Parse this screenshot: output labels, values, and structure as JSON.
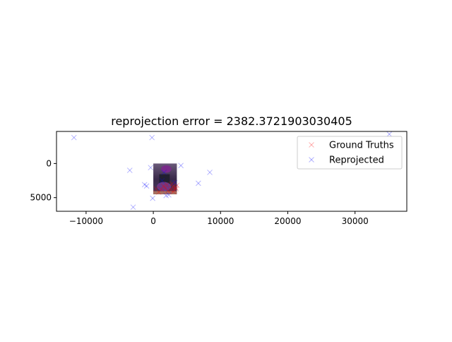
{
  "chart_data": {
    "type": "scatter",
    "title": "reprojection error = 2382.3721903030405",
    "xlabel": "",
    "ylabel": "",
    "xlim": [
      -14400,
      37700
    ],
    "ylim": [
      7000,
      -4700
    ],
    "y_inverted": true,
    "x_ticks": [
      -10000,
      0,
      10000,
      20000,
      30000
    ],
    "x_tick_labels": [
      "−10000",
      "0",
      "10000",
      "20000",
      "30000"
    ],
    "y_ticks": [
      0,
      5000
    ],
    "y_tick_labels": [
      "0",
      "5000"
    ],
    "legend": {
      "placement": "top-right"
    },
    "background_image": {
      "extent_x": [
        0,
        3500
      ],
      "extent_y": [
        0,
        4500
      ]
    },
    "series": [
      {
        "name": "Ground Truths",
        "marker": "x",
        "color": "#ff0000",
        "alpha": 0.3,
        "points": [
          [
            2900,
            3400
          ],
          [
            3100,
            3800
          ],
          [
            3300,
            3500
          ],
          [
            2600,
            3900
          ],
          [
            3400,
            3700
          ],
          [
            1800,
            3600
          ],
          [
            2200,
            4000
          ],
          [
            1500,
            3300
          ],
          [
            1200,
            3800
          ],
          [
            2800,
            3000
          ],
          [
            3000,
            4100
          ],
          [
            400,
            3700
          ],
          [
            800,
            4200
          ],
          [
            2000,
            3100
          ],
          [
            3500,
            3200
          ]
        ]
      },
      {
        "name": "Reprojected",
        "marker": "x",
        "color": "#0000ff",
        "alpha": 0.3,
        "points": [
          [
            -11800,
            -3800
          ],
          [
            -200,
            -3800
          ],
          [
            35100,
            -4300
          ],
          [
            -3500,
            1000
          ],
          [
            4100,
            300
          ],
          [
            8400,
            1300
          ],
          [
            6700,
            2900
          ],
          [
            -1300,
            3100
          ],
          [
            -1000,
            3300
          ],
          [
            -100,
            5100
          ],
          [
            1900,
            4700
          ],
          [
            2300,
            4600
          ],
          [
            -3000,
            6400
          ],
          [
            -400,
            600
          ],
          [
            1600,
            1300
          ],
          [
            3200,
            2800
          ],
          [
            1300,
            2500
          ]
        ]
      }
    ]
  }
}
